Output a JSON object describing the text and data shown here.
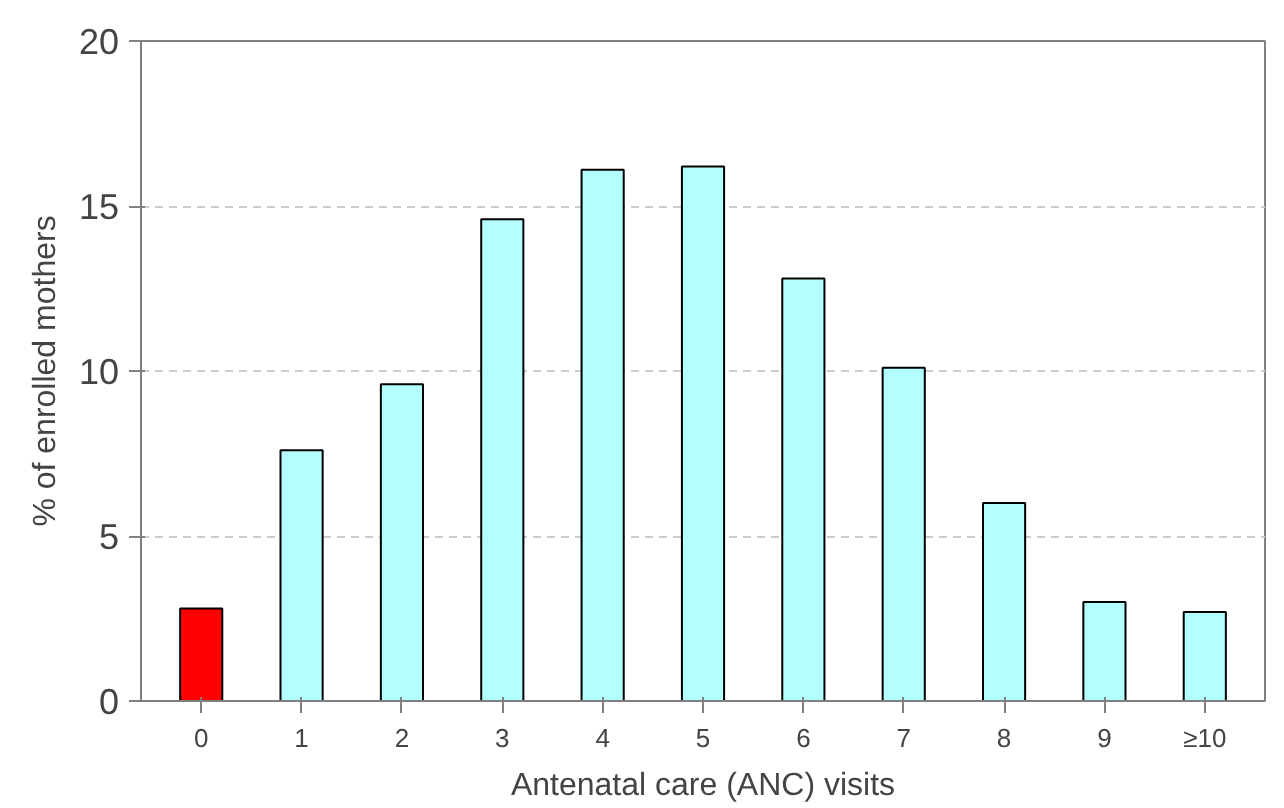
{
  "chart_data": {
    "type": "bar",
    "xlabel": "Antenatal care (ANC) visits",
    "ylabel": "% of enrolled mothers",
    "categories": [
      "0",
      "1",
      "2",
      "3",
      "4",
      "5",
      "6",
      "7",
      "8",
      "9",
      "≥10"
    ],
    "values": [
      2.8,
      7.6,
      9.6,
      14.6,
      16.1,
      16.2,
      12.8,
      10.1,
      6.0,
      3.0,
      2.7
    ],
    "colors": [
      "#ff0000",
      "#b3ffff",
      "#b3ffff",
      "#b3ffff",
      "#b3ffff",
      "#b3ffff",
      "#b3ffff",
      "#b3ffff",
      "#b3ffff",
      "#b3ffff",
      "#b3ffff"
    ],
    "ylim": [
      0,
      20
    ],
    "yticks": [
      0,
      5,
      10,
      15,
      20
    ],
    "grid": "y"
  }
}
